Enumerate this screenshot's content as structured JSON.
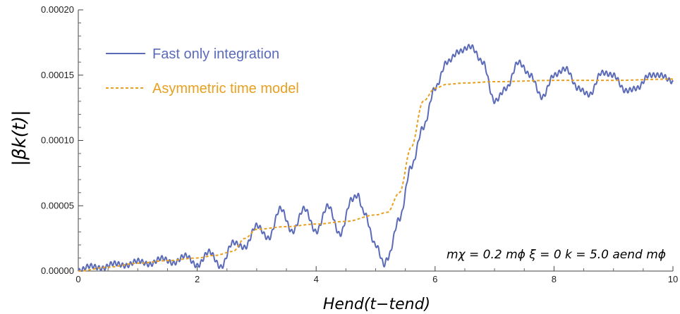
{
  "chart_data": {
    "type": "line",
    "xlabel": "Hend(t−tend)",
    "ylabel": "|βk(t)|",
    "xlim": [
      0,
      10
    ],
    "ylim": [
      0,
      0.0002
    ],
    "xticks": [
      "0",
      "2",
      "4",
      "6",
      "8",
      "10"
    ],
    "yticks": [
      "0.00000",
      "0.00005",
      "0.00010",
      "0.00015",
      "0.00020"
    ],
    "annotation": "mχ = 0.2 mϕ   ξ = 0   k = 5.0 aend mϕ",
    "legend_position": "top-left",
    "grid": false,
    "series": [
      {
        "name": "Fast only integration",
        "color": "#5b6bb8",
        "style": "solid",
        "x": [
          0.0,
          0.2,
          0.4,
          0.6,
          0.8,
          1.0,
          1.2,
          1.4,
          1.6,
          1.8,
          2.0,
          2.2,
          2.4,
          2.6,
          2.8,
          3.0,
          3.2,
          3.4,
          3.6,
          3.8,
          4.0,
          4.2,
          4.4,
          4.6,
          4.7,
          4.8,
          5.0,
          5.15,
          5.2,
          5.4,
          5.6,
          5.8,
          6.0,
          6.2,
          6.4,
          6.6,
          6.8,
          7.0,
          7.2,
          7.4,
          7.6,
          7.8,
          8.0,
          8.2,
          8.4,
          8.6,
          8.8,
          9.0,
          9.2,
          9.4,
          9.6,
          9.8,
          10.0
        ],
        "y": [
          0.0,
          4e-06,
          2e-06,
          6e-06,
          4e-06,
          8e-06,
          5e-06,
          1e-05,
          6e-06,
          1.2e-05,
          4e-06,
          1.5e-05,
          3e-06,
          2.2e-05,
          1.8e-05,
          3.5e-05,
          2.5e-05,
          4.8e-05,
          3e-05,
          4.8e-05,
          3e-05,
          5e-05,
          2.8e-05,
          5.5e-05,
          5.8e-05,
          4.5e-05,
          2e-05,
          5e-06,
          1e-05,
          4e-05,
          8e-05,
          0.00011,
          0.00014,
          0.00016,
          0.000168,
          0.000172,
          0.00016,
          0.00013,
          0.00014,
          0.00016,
          0.00015,
          0.000133,
          0.00015,
          0.000155,
          0.00014,
          0.000135,
          0.000152,
          0.00015,
          0.000138,
          0.00014,
          0.00015,
          0.00015,
          0.000145
        ]
      },
      {
        "name": "Asymmetric time model",
        "color": "#e8a020",
        "style": "dashed",
        "x": [
          0.0,
          0.5,
          1.0,
          1.5,
          2.0,
          2.3,
          2.6,
          2.8,
          3.0,
          3.5,
          4.0,
          4.5,
          5.0,
          5.2,
          5.4,
          5.6,
          5.8,
          6.0,
          6.2,
          6.5,
          7.0,
          8.0,
          9.0,
          10.0
        ],
        "y": [
          0.0,
          3e-06,
          6e-06,
          8e-06,
          1e-05,
          1.2e-05,
          1.5e-05,
          2.5e-05,
          3.2e-05,
          3.4e-05,
          3.6e-05,
          3.8e-05,
          4.3e-05,
          4.5e-05,
          6e-05,
          9.5e-05,
          0.00013,
          0.00014,
          0.000143,
          0.000144,
          0.000145,
          0.000146,
          0.000146,
          0.000147
        ]
      }
    ]
  }
}
